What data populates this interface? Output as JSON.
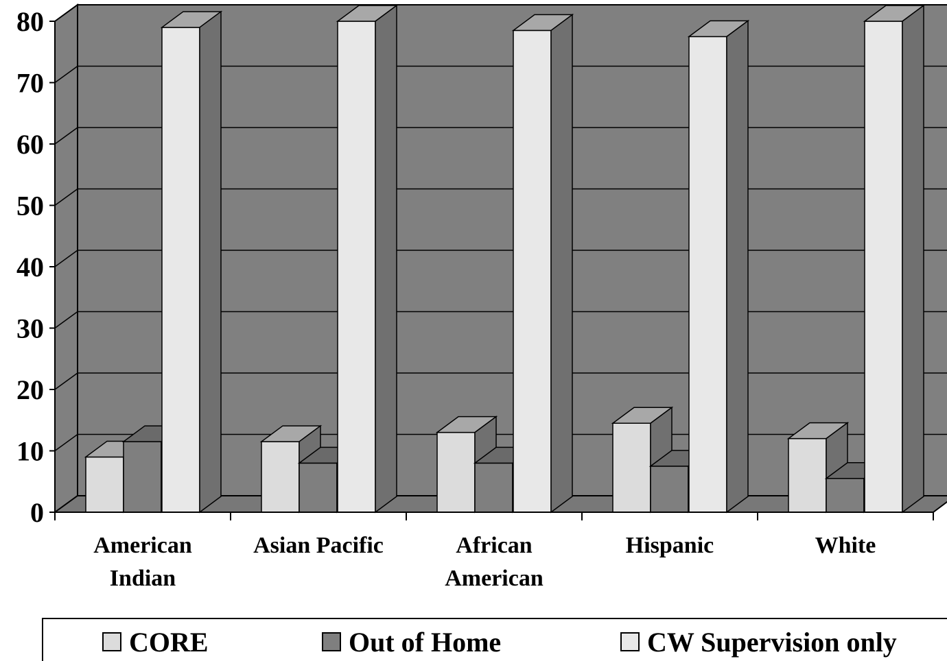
{
  "chart_data": {
    "type": "bar",
    "three_d": true,
    "title": "",
    "xlabel": "",
    "ylabel": "",
    "ylim": [
      0,
      80
    ],
    "yticks": [
      0,
      10,
      20,
      30,
      40,
      50,
      60,
      70,
      80
    ],
    "grid": true,
    "categories": [
      [
        "American",
        "Indian"
      ],
      [
        "Asian Pacific"
      ],
      [
        "African",
        "American"
      ],
      [
        "Hispanic"
      ],
      [
        "White"
      ]
    ],
    "series": [
      {
        "name": "CORE",
        "color": "#dcdcdc",
        "values": [
          9,
          11.5,
          13,
          14.5,
          12
        ]
      },
      {
        "name": "Out of Home",
        "color": "#7f7f7f",
        "values": [
          11.5,
          8,
          8,
          7.5,
          5.5
        ]
      },
      {
        "name": "CW Supervision only",
        "color": "#e8e8e8",
        "values": [
          79,
          80,
          78.5,
          77.5,
          80
        ]
      }
    ],
    "colors": {
      "back_wall": "#808080",
      "floor": "#787878",
      "bar_top": "#a8a8a8",
      "bar_side": "#707070",
      "grid_line": "#000000"
    },
    "legend_placement": "bottom"
  }
}
